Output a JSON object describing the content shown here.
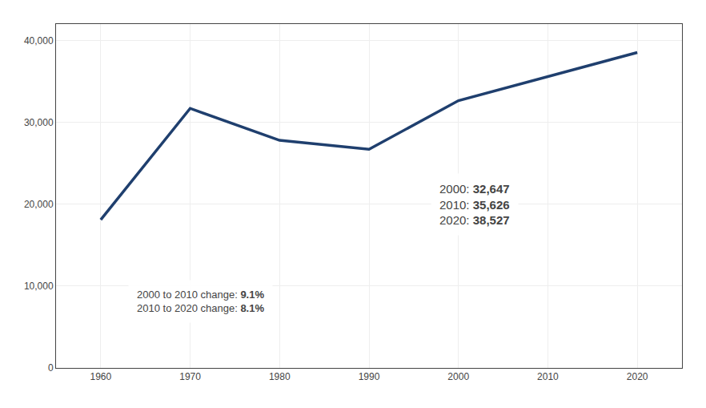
{
  "chart_data": {
    "type": "line",
    "x": [
      1960,
      1970,
      1980,
      1990,
      2000,
      2010,
      2020
    ],
    "values": [
      18100,
      31700,
      27800,
      26700,
      32647,
      35626,
      38527
    ],
    "color": "#1f3f6e",
    "xlim": [
      1955,
      2025
    ],
    "xticks": [
      1960,
      1970,
      1980,
      1990,
      2000,
      2010,
      2020
    ],
    "ylim": [
      0,
      42000
    ],
    "yticks": [
      0,
      {
        "value": 10000,
        "label": "10,000"
      },
      {
        "value": 20000,
        "label": "20,000"
      },
      {
        "value": 30000,
        "label": "30,000"
      },
      {
        "value": 40000,
        "label": "40,000"
      }
    ],
    "grid": true,
    "annotations": [
      [
        [
          "2000 to 2010 change:",
          "9.1%"
        ],
        [
          "2010 to 2020 change:",
          "8.1%"
        ]
      ],
      [
        [
          "2000:",
          "32,647"
        ],
        [
          "2010:",
          "35,626"
        ],
        [
          "2020:",
          "38,527"
        ]
      ]
    ]
  }
}
